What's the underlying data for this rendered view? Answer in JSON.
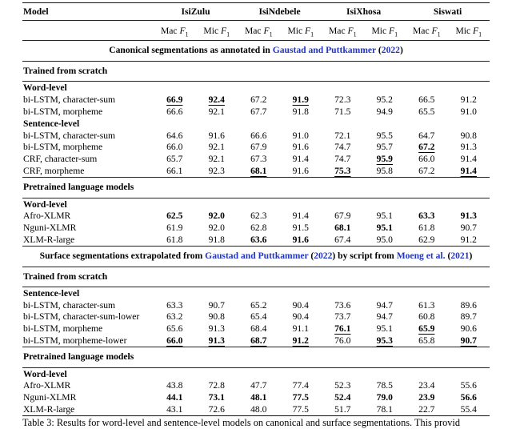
{
  "table": {
    "model_header": "Model",
    "languages": [
      "IsiZulu",
      "IsiNdebele",
      "IsiXhosa",
      "Siswati"
    ],
    "metric": {
      "mac": "Mac",
      "mic": "Mic",
      "f": "F",
      "sub": "1"
    },
    "blocks": [
      {
        "kind": "band_center",
        "parts": [
          {
            "t": "Canonical segmentations as annotated in ",
            "cite": false
          },
          {
            "t": "Gaustad and Puttkammer",
            "cite": true
          },
          {
            "t": " (",
            "cite": false
          },
          {
            "t": "2022",
            "cite": true
          },
          {
            "t": ")",
            "cite": false
          }
        ]
      },
      {
        "kind": "band_left",
        "text": "Trained from scratch"
      },
      {
        "kind": "subhead",
        "text": "Word-level"
      },
      {
        "kind": "row",
        "label": "bi-LSTM, character-sum",
        "values": [
          "66.9",
          "92.4",
          "67.2",
          "91.9",
          "72.3",
          "95.2",
          "66.5",
          "91.2"
        ],
        "marks": [
          "bu",
          "bu",
          "",
          "bu",
          "",
          "",
          "",
          ""
        ]
      },
      {
        "kind": "row",
        "label": "bi-LSTM, morpheme",
        "values": [
          "66.6",
          "92.1",
          "67.7",
          "91.8",
          "71.5",
          "94.9",
          "65.5",
          "91.0"
        ],
        "marks": [
          "",
          "",
          "",
          "",
          "",
          "",
          "",
          ""
        ]
      },
      {
        "kind": "subhead",
        "text": "Sentence-level"
      },
      {
        "kind": "row",
        "label": "bi-LSTM, character-sum",
        "values": [
          "64.6",
          "91.6",
          "66.6",
          "91.0",
          "72.1",
          "95.5",
          "64.7",
          "90.8"
        ],
        "marks": [
          "",
          "",
          "",
          "",
          "",
          "",
          "",
          ""
        ]
      },
      {
        "kind": "row",
        "label": "bi-LSTM, morpheme",
        "values": [
          "66.0",
          "92.1",
          "67.9",
          "91.6",
          "74.7",
          "95.7",
          "67.2",
          "91.3"
        ],
        "marks": [
          "",
          "",
          "",
          "",
          "",
          "",
          "bu",
          ""
        ]
      },
      {
        "kind": "row",
        "label": "CRF, character-sum",
        "values": [
          "65.7",
          "92.1",
          "67.3",
          "91.4",
          "74.7",
          "95.9",
          "66.0",
          "91.4"
        ],
        "marks": [
          "",
          "",
          "",
          "",
          "",
          "bu",
          "",
          ""
        ]
      },
      {
        "kind": "row",
        "label": "CRF, morpheme",
        "values": [
          "66.1",
          "92.3",
          "68.1",
          "91.6",
          "75.3",
          "95.8",
          "67.2",
          "91.4"
        ],
        "marks": [
          "",
          "",
          "bu",
          "",
          "bu",
          "",
          "",
          "bu"
        ]
      },
      {
        "kind": "band_left",
        "text": "Pretrained language models"
      },
      {
        "kind": "subhead",
        "text": "Word-level"
      },
      {
        "kind": "row",
        "label": "Afro-XLMR",
        "values": [
          "62.5",
          "92.0",
          "62.3",
          "91.4",
          "67.9",
          "95.1",
          "63.3",
          "91.3"
        ],
        "marks": [
          "b",
          "b",
          "",
          "",
          "",
          "",
          "b",
          "b"
        ]
      },
      {
        "kind": "row",
        "label": "Nguni-XLMR",
        "values": [
          "61.9",
          "92.0",
          "62.8",
          "91.5",
          "68.1",
          "95.1",
          "61.8",
          "90.7"
        ],
        "marks": [
          "",
          "",
          "",
          "",
          "b",
          "b",
          "",
          ""
        ]
      },
      {
        "kind": "row",
        "label": "XLM-R-large",
        "values": [
          "61.8",
          "91.8",
          "63.6",
          "91.6",
          "67.4",
          "95.0",
          "62.9",
          "91.2"
        ],
        "marks": [
          "",
          "",
          "b",
          "b",
          "",
          "",
          "",
          ""
        ]
      },
      {
        "kind": "band_center",
        "parts": [
          {
            "t": "Surface segmentations extrapolated from ",
            "cite": false
          },
          {
            "t": "Gaustad and Puttkammer",
            "cite": true
          },
          {
            "t": " (",
            "cite": false
          },
          {
            "t": "2022",
            "cite": true
          },
          {
            "t": ") by script from ",
            "cite": false
          },
          {
            "t": "Moeng et al.",
            "cite": true
          },
          {
            "t": " (",
            "cite": false
          },
          {
            "t": "2021",
            "cite": true
          },
          {
            "t": ")",
            "cite": false
          }
        ]
      },
      {
        "kind": "band_left",
        "text": "Trained from scratch"
      },
      {
        "kind": "subhead",
        "text": "Sentence-level"
      },
      {
        "kind": "row",
        "label": "bi-LSTM, character-sum",
        "values": [
          "63.3",
          "90.7",
          "65.2",
          "90.4",
          "73.6",
          "94.7",
          "61.3",
          "89.6"
        ],
        "marks": [
          "",
          "",
          "",
          "",
          "",
          "",
          "",
          ""
        ]
      },
      {
        "kind": "row",
        "label": "bi-LSTM, character-sum-lower",
        "values": [
          "63.2",
          "90.8",
          "65.4",
          "90.4",
          "73.7",
          "94.7",
          "60.8",
          "89.7"
        ],
        "marks": [
          "",
          "",
          "",
          "",
          "",
          "",
          "",
          ""
        ]
      },
      {
        "kind": "row",
        "label": "bi-LSTM, morpheme",
        "values": [
          "65.6",
          "91.3",
          "68.4",
          "91.1",
          "76.1",
          "95.1",
          "65.9",
          "90.6"
        ],
        "marks": [
          "",
          "",
          "",
          "",
          "bu",
          "",
          "bu",
          ""
        ]
      },
      {
        "kind": "row",
        "label": "bi-LSTM, morpheme-lower",
        "values": [
          "66.0",
          "91.3",
          "68.7",
          "91.2",
          "76.0",
          "95.3",
          "65.8",
          "90.7"
        ],
        "marks": [
          "bu",
          "bu",
          "bu",
          "bu",
          "",
          "bu",
          "",
          "bu"
        ]
      },
      {
        "kind": "band_left",
        "text": "Pretrained language models"
      },
      {
        "kind": "subhead",
        "text": "Word-level"
      },
      {
        "kind": "row",
        "label": "Afro-XLMR",
        "values": [
          "43.8",
          "72.8",
          "47.7",
          "77.4",
          "52.3",
          "78.5",
          "23.4",
          "55.6"
        ],
        "marks": [
          "",
          "",
          "",
          "",
          "",
          "",
          "",
          ""
        ]
      },
      {
        "kind": "row",
        "label": "Nguni-XLMR",
        "values": [
          "44.1",
          "73.1",
          "48.1",
          "77.5",
          "52.4",
          "79.0",
          "23.9",
          "56.6"
        ],
        "marks": [
          "b",
          "b",
          "b",
          "b",
          "b",
          "b",
          "b",
          "b"
        ]
      },
      {
        "kind": "row",
        "label": "XLM-R-large",
        "values": [
          "43.1",
          "72.6",
          "48.0",
          "77.5",
          "51.7",
          "78.1",
          "22.7",
          "55.4"
        ],
        "marks": [
          "",
          "",
          "",
          "",
          "",
          "",
          "",
          ""
        ]
      }
    ]
  },
  "caption": "Table 3: Results for word-level and sentence-level models on canonical and surface segmentations. This provid",
  "colors": {
    "citation_blue": "#2134c6",
    "rule": "#111111"
  }
}
